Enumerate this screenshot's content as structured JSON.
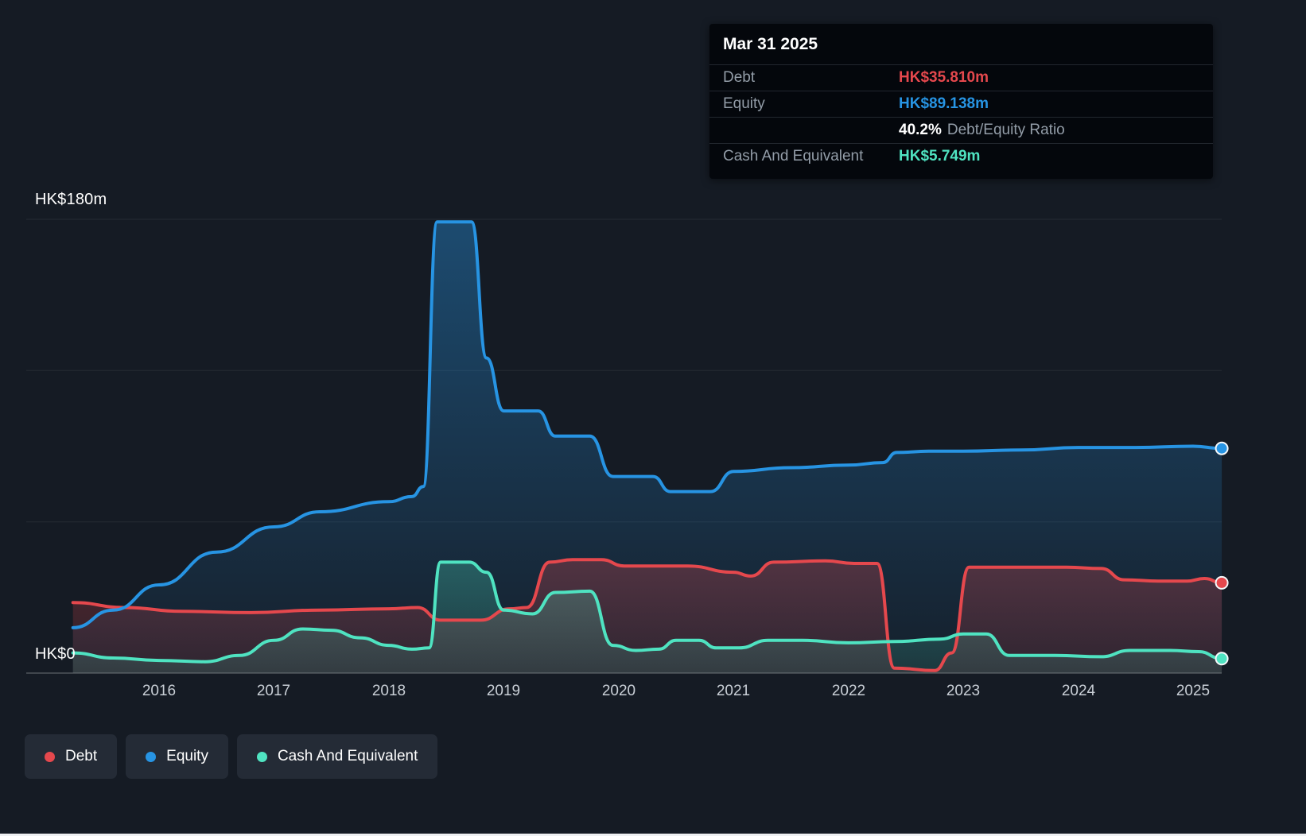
{
  "colors": {
    "debt": "#e5484d",
    "equity": "#2794e3",
    "cash": "#4fe3c1",
    "background": "#151b24"
  },
  "tooltip": {
    "date": "Mar 31 2025",
    "debt_label": "Debt",
    "debt_value": "HK$35.810m",
    "equity_label": "Equity",
    "equity_value": "HK$89.138m",
    "ratio_value": "40.2%",
    "ratio_label": "Debt/Equity Ratio",
    "cash_label": "Cash And Equivalent",
    "cash_value": "HK$5.749m"
  },
  "axis": {
    "y_top_label": "HK$180m",
    "y_bottom_label": "HK$0",
    "x_labels": [
      "2016",
      "2017",
      "2018",
      "2019",
      "2020",
      "2021",
      "2022",
      "2023",
      "2024",
      "2025"
    ]
  },
  "legend": {
    "items": [
      {
        "label": "Debt",
        "color": "#e5484d"
      },
      {
        "label": "Equity",
        "color": "#2794e3"
      },
      {
        "label": "Cash And Equivalent",
        "color": "#4fe3c1"
      }
    ]
  },
  "chart_data": {
    "type": "area",
    "x_unit": "year",
    "y_unit": "HK$ millions",
    "x_range": [
      2015.25,
      2025.25
    ],
    "y_range": [
      0,
      180
    ],
    "gridlines": [
      0,
      60,
      120,
      180
    ],
    "x_ticks": [
      2016,
      2017,
      2018,
      2019,
      2020,
      2021,
      2022,
      2023,
      2024,
      2025
    ],
    "legend_position": "bottom-left",
    "series": [
      {
        "name": "Equity",
        "color": "#2794e3",
        "fill_from": 180,
        "fill_opacity": [
          0.4,
          0.04
        ],
        "points": [
          [
            2015.25,
            18
          ],
          [
            2015.6,
            25
          ],
          [
            2016,
            35
          ],
          [
            2016.5,
            48
          ],
          [
            2017,
            58
          ],
          [
            2017.4,
            64
          ],
          [
            2018,
            68
          ],
          [
            2018.2,
            70
          ],
          [
            2018.3,
            74
          ],
          [
            2018.42,
            179
          ],
          [
            2018.72,
            179
          ],
          [
            2018.85,
            125
          ],
          [
            2019,
            104
          ],
          [
            2019.3,
            104
          ],
          [
            2019.45,
            94
          ],
          [
            2019.75,
            94
          ],
          [
            2019.95,
            78
          ],
          [
            2020.3,
            78
          ],
          [
            2020.45,
            72
          ],
          [
            2020.8,
            72
          ],
          [
            2021,
            80
          ],
          [
            2021.5,
            81.5
          ],
          [
            2022,
            82.5
          ],
          [
            2022.3,
            83.5
          ],
          [
            2022.42,
            87.5
          ],
          [
            2022.7,
            88
          ],
          [
            2023,
            88
          ],
          [
            2023.5,
            88.5
          ],
          [
            2024,
            89.5
          ],
          [
            2024.5,
            89.5
          ],
          [
            2025,
            90
          ],
          [
            2025.25,
            89.138
          ]
        ]
      },
      {
        "name": "Debt",
        "color": "#e5484d",
        "fill_from": 50,
        "fill_opacity": [
          0.3,
          0.12
        ],
        "points": [
          [
            2015.25,
            28
          ],
          [
            2015.7,
            26
          ],
          [
            2016.2,
            24.5
          ],
          [
            2016.8,
            24
          ],
          [
            2017.4,
            25
          ],
          [
            2018,
            25.5
          ],
          [
            2018.25,
            26
          ],
          [
            2018.45,
            21
          ],
          [
            2018.8,
            21
          ],
          [
            2019.05,
            25.5
          ],
          [
            2019.2,
            26
          ],
          [
            2019.4,
            44
          ],
          [
            2019.6,
            45
          ],
          [
            2019.85,
            45
          ],
          [
            2020.05,
            42.5
          ],
          [
            2020.6,
            42.5
          ],
          [
            2021,
            40
          ],
          [
            2021.15,
            38.5
          ],
          [
            2021.35,
            44
          ],
          [
            2021.8,
            44.5
          ],
          [
            2022.05,
            43.5
          ],
          [
            2022.25,
            43.5
          ],
          [
            2022.4,
            2
          ],
          [
            2022.75,
            1
          ],
          [
            2022.9,
            8
          ],
          [
            2023.05,
            42
          ],
          [
            2023.5,
            42
          ],
          [
            2023.9,
            42
          ],
          [
            2024.2,
            41.5
          ],
          [
            2024.4,
            37
          ],
          [
            2024.7,
            36.5
          ],
          [
            2024.95,
            36.5
          ],
          [
            2025.1,
            37.5
          ],
          [
            2025.25,
            35.81
          ]
        ]
      },
      {
        "name": "Cash And Equivalent",
        "color": "#4fe3c1",
        "fill_from": 50,
        "fill_opacity": [
          0.3,
          0.12
        ],
        "points": [
          [
            2015.25,
            8
          ],
          [
            2015.6,
            6
          ],
          [
            2016,
            5
          ],
          [
            2016.4,
            4.5
          ],
          [
            2016.7,
            7
          ],
          [
            2017,
            13
          ],
          [
            2017.25,
            17.5
          ],
          [
            2017.5,
            17
          ],
          [
            2017.75,
            14
          ],
          [
            2018,
            11
          ],
          [
            2018.2,
            9.5
          ],
          [
            2018.35,
            10
          ],
          [
            2018.45,
            44
          ],
          [
            2018.7,
            44
          ],
          [
            2018.85,
            40
          ],
          [
            2019,
            25
          ],
          [
            2019.25,
            23.5
          ],
          [
            2019.45,
            32
          ],
          [
            2019.75,
            32.5
          ],
          [
            2019.95,
            11
          ],
          [
            2020.15,
            9
          ],
          [
            2020.35,
            9.5
          ],
          [
            2020.5,
            13
          ],
          [
            2020.7,
            13
          ],
          [
            2020.85,
            10
          ],
          [
            2021.05,
            10
          ],
          [
            2021.3,
            13
          ],
          [
            2021.6,
            13
          ],
          [
            2022,
            12
          ],
          [
            2022.4,
            12.5
          ],
          [
            2022.8,
            13.5
          ],
          [
            2023,
            15.5
          ],
          [
            2023.2,
            15.5
          ],
          [
            2023.4,
            7
          ],
          [
            2023.8,
            7
          ],
          [
            2024.2,
            6.5
          ],
          [
            2024.45,
            9
          ],
          [
            2024.8,
            9
          ],
          [
            2025.05,
            8.5
          ],
          [
            2025.25,
            5.749
          ]
        ]
      }
    ]
  }
}
